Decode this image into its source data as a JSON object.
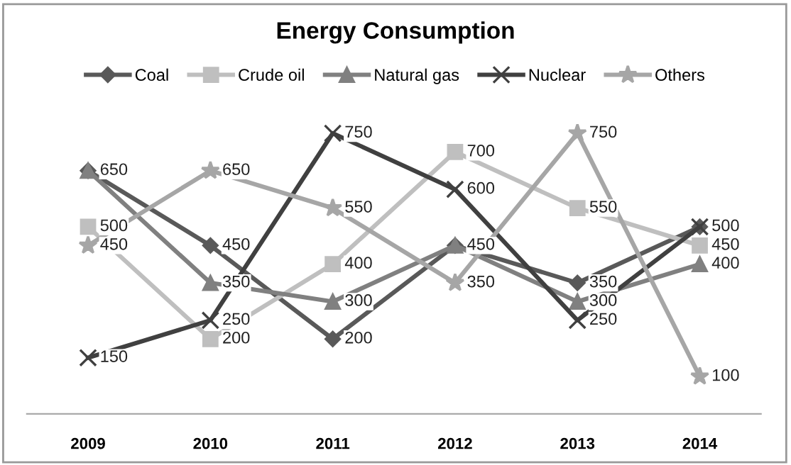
{
  "chart_data": {
    "type": "line",
    "title": "Energy Consumption",
    "categories": [
      "2009",
      "2010",
      "2011",
      "2012",
      "2013",
      "2014"
    ],
    "series": [
      {
        "name": "Coal",
        "color": "#595959",
        "marker": "diamond",
        "values": [
          650,
          450,
          200,
          450,
          350,
          500
        ],
        "value_labels": [
          "650",
          "450",
          "200",
          "450",
          "350",
          "500"
        ]
      },
      {
        "name": "Crude oil",
        "color": "#bfbfbf",
        "marker": "square",
        "values": [
          500,
          200,
          400,
          700,
          550,
          450
        ],
        "value_labels": [
          "500",
          "200",
          "400",
          "700",
          "550",
          "450"
        ]
      },
      {
        "name": "Natural gas",
        "color": "#808080",
        "marker": "triangle",
        "values": [
          650,
          350,
          300,
          450,
          300,
          400
        ],
        "value_labels": [
          null,
          "350",
          "300",
          null,
          "300",
          "400"
        ]
      },
      {
        "name": "Nuclear",
        "color": "#404040",
        "marker": "cross",
        "values": [
          150,
          250,
          750,
          600,
          250,
          500
        ],
        "value_labels": [
          "150",
          "250",
          "750",
          "600",
          "250",
          null
        ]
      },
      {
        "name": "Others",
        "color": "#a6a6a6",
        "marker": "star",
        "values": [
          450,
          650,
          550,
          350,
          750,
          100
        ],
        "value_labels": [
          "450",
          "650",
          "550",
          "350",
          "750",
          "100"
        ]
      }
    ],
    "legend": "top",
    "grid": false
  }
}
